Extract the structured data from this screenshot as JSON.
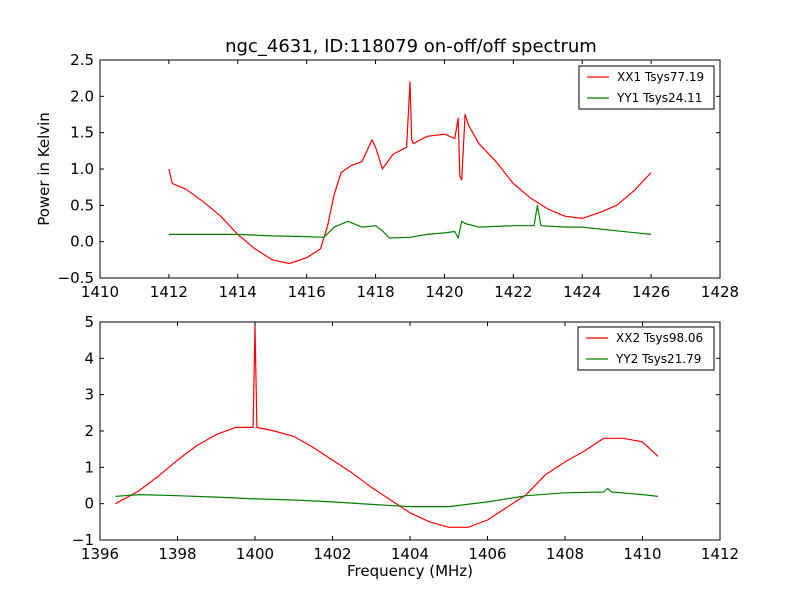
{
  "title": "ngc_4631, ID:118079 on-off/off spectrum",
  "ylabel_top": "Power in Kelvin",
  "xlabel_bottom": "Frequency (MHz)",
  "chart_data": [
    {
      "type": "line",
      "title": "ngc_4631, ID:118079 on-off/off spectrum",
      "xlabel": "",
      "ylabel": "Power in Kelvin",
      "xlim": [
        1410,
        1428
      ],
      "ylim": [
        -0.5,
        2.5
      ],
      "x_ticks": [
        1410,
        1412,
        1414,
        1416,
        1418,
        1420,
        1422,
        1424,
        1426,
        1428
      ],
      "x_tick_labels": [
        "1410",
        "1412",
        "1414",
        "1416",
        "1418",
        "1420",
        "1422",
        "1424",
        "1426",
        "1428"
      ],
      "y_ticks": [
        -0.5,
        0.0,
        0.5,
        1.0,
        1.5,
        2.0,
        2.5
      ],
      "y_tick_labels": [
        "−0.5",
        "0.0",
        "0.5",
        "1.0",
        "1.5",
        "2.0",
        "2.5"
      ],
      "legend_position": "top-right",
      "grid": false,
      "series": [
        {
          "name": "XX1 Tsys77.19",
          "color": "#ff0000",
          "x": [
            1412.0,
            1412.1,
            1412.5,
            1413.0,
            1413.5,
            1414.0,
            1414.5,
            1415.0,
            1415.5,
            1416.0,
            1416.4,
            1416.6,
            1416.8,
            1417.0,
            1417.3,
            1417.6,
            1417.9,
            1418.0,
            1418.2,
            1418.5,
            1418.9,
            1419.0,
            1419.05,
            1419.1,
            1419.5,
            1420.0,
            1420.3,
            1420.4,
            1420.45,
            1420.5,
            1420.6,
            1420.7,
            1421.0,
            1421.5,
            1422.0,
            1422.5,
            1423.0,
            1423.5,
            1424.0,
            1424.5,
            1425.0,
            1425.5,
            1426.0
          ],
          "y": [
            1.0,
            0.8,
            0.72,
            0.55,
            0.35,
            0.1,
            -0.1,
            -0.25,
            -0.3,
            -0.22,
            -0.1,
            0.2,
            0.65,
            0.95,
            1.05,
            1.1,
            1.4,
            1.3,
            1.0,
            1.2,
            1.3,
            2.2,
            1.4,
            1.35,
            1.45,
            1.48,
            1.42,
            1.7,
            0.9,
            0.85,
            1.75,
            1.6,
            1.35,
            1.1,
            0.8,
            0.6,
            0.45,
            0.35,
            0.32,
            0.4,
            0.5,
            0.7,
            0.95
          ]
        },
        {
          "name": "YY1 Tsys24.11",
          "color": "#008000",
          "x": [
            1412.0,
            1413.0,
            1414.0,
            1415.0,
            1416.0,
            1416.5,
            1416.8,
            1417.2,
            1417.6,
            1418.0,
            1418.2,
            1418.4,
            1419.0,
            1419.5,
            1420.0,
            1420.3,
            1420.4,
            1420.5,
            1420.6,
            1421.0,
            1422.0,
            1422.6,
            1422.7,
            1422.8,
            1423.5,
            1424.0,
            1425.0,
            1426.0
          ],
          "y": [
            0.1,
            0.1,
            0.1,
            0.08,
            0.07,
            0.06,
            0.2,
            0.28,
            0.2,
            0.22,
            0.15,
            0.05,
            0.06,
            0.1,
            0.12,
            0.14,
            0.05,
            0.28,
            0.25,
            0.2,
            0.22,
            0.22,
            0.5,
            0.22,
            0.2,
            0.2,
            0.15,
            0.1
          ]
        }
      ]
    },
    {
      "type": "line",
      "title": "",
      "xlabel": "Frequency (MHz)",
      "ylabel": "",
      "xlim": [
        1396,
        1412
      ],
      "ylim": [
        -1,
        5
      ],
      "x_ticks": [
        1396,
        1398,
        1400,
        1402,
        1404,
        1406,
        1408,
        1410,
        1412
      ],
      "x_tick_labels": [
        "1396",
        "1398",
        "1400",
        "1402",
        "1404",
        "1406",
        "1408",
        "1410",
        "1412"
      ],
      "y_ticks": [
        -1,
        0,
        1,
        2,
        3,
        4,
        5
      ],
      "y_tick_labels": [
        "−1",
        "0",
        "1",
        "2",
        "3",
        "4",
        "5"
      ],
      "legend_position": "top-right",
      "grid": false,
      "series": [
        {
          "name": "XX2 Tsys98.06",
          "color": "#ff0000",
          "x": [
            1396.4,
            1397.0,
            1397.5,
            1398.0,
            1398.5,
            1399.0,
            1399.5,
            1399.95,
            1400.0,
            1400.05,
            1400.5,
            1401.0,
            1401.5,
            1402.0,
            1402.5,
            1403.0,
            1403.5,
            1404.0,
            1404.5,
            1405.0,
            1405.5,
            1406.0,
            1406.5,
            1407.0,
            1407.5,
            1408.0,
            1408.5,
            1409.0,
            1409.5,
            1410.0,
            1410.4
          ],
          "y": [
            0.0,
            0.35,
            0.75,
            1.2,
            1.6,
            1.9,
            2.1,
            2.1,
            4.9,
            2.1,
            2.0,
            1.85,
            1.55,
            1.2,
            0.85,
            0.45,
            0.1,
            -0.25,
            -0.5,
            -0.65,
            -0.65,
            -0.45,
            -0.1,
            0.25,
            0.8,
            1.15,
            1.45,
            1.8,
            1.8,
            1.7,
            1.3
          ]
        },
        {
          "name": "YY2 Tsys21.79",
          "color": "#008000",
          "x": [
            1396.4,
            1397.0,
            1398.0,
            1399.0,
            1400.0,
            1401.0,
            1402.0,
            1403.0,
            1404.0,
            1405.0,
            1406.0,
            1407.0,
            1408.0,
            1409.0,
            1409.1,
            1409.2,
            1410.0,
            1410.4
          ],
          "y": [
            0.2,
            0.25,
            0.22,
            0.18,
            0.13,
            0.1,
            0.05,
            -0.02,
            -0.08,
            -0.08,
            0.05,
            0.22,
            0.3,
            0.32,
            0.42,
            0.32,
            0.25,
            0.2
          ]
        }
      ]
    }
  ]
}
